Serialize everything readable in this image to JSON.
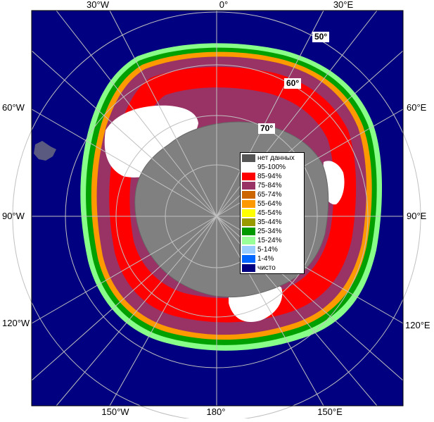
{
  "map": {
    "type": "polar stereographic sea ice concentration map (Southern Hemisphere)",
    "colors": {
      "ocean_open": "#000080",
      "land": "#808080",
      "land_ice_shelf": "#999999",
      "grid": "#c0c0c0",
      "frame": "#000000",
      "ice_edge_green": "#00a000",
      "ice_edge_lightgreen": "#88ff88",
      "ice_orange": "#ff9900",
      "ice_dark_orange": "#cc6600",
      "ice_mauve": "#993366",
      "ice_red": "#ff0000",
      "ice_white": "#ffffff"
    },
    "longitude_labels": {
      "top": [
        "30°W",
        "0°",
        "30°E"
      ],
      "bottom": [
        "150°W",
        "180°",
        "150°E"
      ],
      "left": [
        "60°W",
        "90°W",
        "120°W"
      ],
      "right": [
        "60°E",
        "90°E",
        "120°E"
      ]
    },
    "latitude_labels": [
      "50°",
      "60°",
      "70°"
    ]
  },
  "legend": {
    "items": [
      {
        "label": "нет данных",
        "color": "#555555"
      },
      {
        "label": "95-100%",
        "color": "#ffffff"
      },
      {
        "label": "85-94%",
        "color": "#ff0000"
      },
      {
        "label": "75-84%",
        "color": "#993366"
      },
      {
        "label": "65-74%",
        "color": "#cc6600"
      },
      {
        "label": "55-64%",
        "color": "#ff9900"
      },
      {
        "label": "45-54%",
        "color": "#ffff00"
      },
      {
        "label": "35-44%",
        "color": "#999900"
      },
      {
        "label": "25-34%",
        "color": "#009900"
      },
      {
        "label": "15-24%",
        "color": "#99ff99"
      },
      {
        "label": "5-14%",
        "color": "#99ccff"
      },
      {
        "label": "1-4%",
        "color": "#0066ff"
      },
      {
        "label": "чисто",
        "color": "#000080"
      }
    ]
  }
}
